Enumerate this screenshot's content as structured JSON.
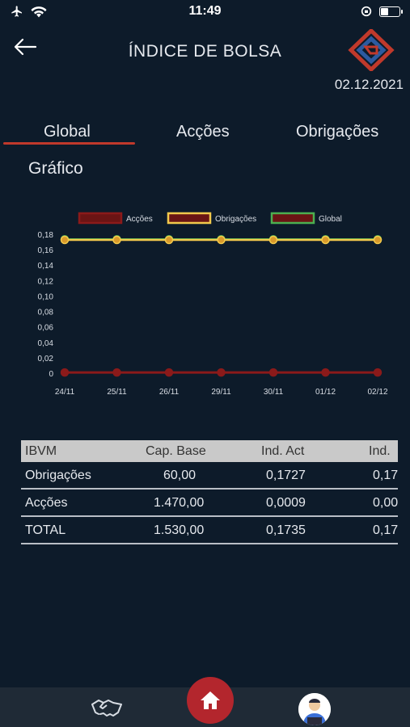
{
  "status_bar": {
    "time": "11:49",
    "icons": [
      "airplane-icon",
      "wifi-icon",
      "orientation-lock-icon",
      "battery-icon"
    ],
    "battery_level": 0.45
  },
  "header": {
    "title": "ÍNDICE DE BOLSA",
    "date": "02.12.2021",
    "back_icon": "arrow-left-icon",
    "logo_icon": "brand-logo"
  },
  "tabs": [
    {
      "label": "Global",
      "active": true
    },
    {
      "label": "Acções",
      "active": false
    },
    {
      "label": "Obrigações",
      "active": false
    }
  ],
  "section_title": "Gráfico",
  "colors": {
    "background": "#0d1b2a",
    "accent": "#c0392b",
    "accoes": "#8b1a1a",
    "obrigacoes": "#f2c94c",
    "global": "#4caf50"
  },
  "chart_data": {
    "type": "line",
    "title": "",
    "xlabel": "",
    "ylabel": "",
    "categories": [
      "24/11",
      "25/11",
      "26/11",
      "29/11",
      "30/11",
      "01/12",
      "02/12"
    ],
    "y_ticks": [
      "0",
      "0,02",
      "0,04",
      "0,06",
      "0,08",
      "0,10",
      "0,12",
      "0,14",
      "0,16",
      "0,18"
    ],
    "ylim": [
      0,
      0.18
    ],
    "legend_position": "top",
    "grid": false,
    "series": [
      {
        "name": "Acções",
        "color": "#8b1a1a",
        "values": [
          0.0009,
          0.0009,
          0.0009,
          0.0009,
          0.0009,
          0.0009,
          0.0009
        ]
      },
      {
        "name": "Obrigações",
        "color": "#f2c94c",
        "values": [
          0.1727,
          0.1727,
          0.1727,
          0.1727,
          0.1727,
          0.1727,
          0.1727
        ]
      },
      {
        "name": "Global",
        "color": "#4caf50",
        "values": [
          0.1735,
          0.1735,
          0.1735,
          0.1735,
          0.1735,
          0.1735,
          0.1735
        ]
      }
    ]
  },
  "table": {
    "headers": [
      "IBVM",
      "Cap. Base",
      "Ind. Act",
      "Ind."
    ],
    "rows": [
      [
        "Obrigações",
        "60,00",
        "0,1727",
        "0,17"
      ],
      [
        "Acções",
        "1.470,00",
        "0,0009",
        "0,00"
      ],
      [
        "TOTAL",
        "1.530,00",
        "0,1735",
        "0,17"
      ]
    ]
  },
  "bottom_nav": {
    "items": [
      "handshake-icon",
      "home-icon",
      "profile-avatar"
    ]
  }
}
